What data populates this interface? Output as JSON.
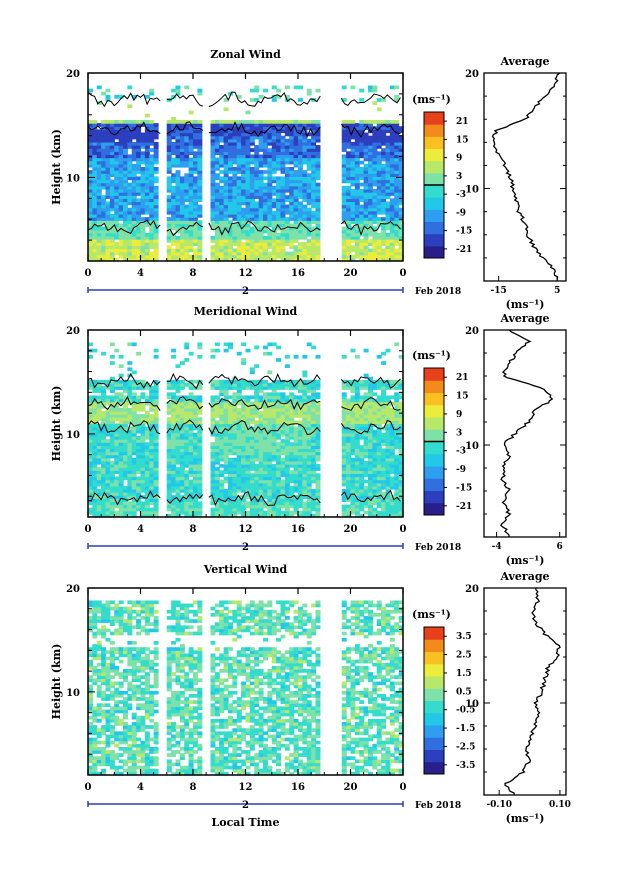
{
  "chart_data": [
    {
      "type": "heatmap",
      "title": "Zonal Wind",
      "ylabel": "Height (km)",
      "x_tick_labels": [
        "0",
        "4",
        "8",
        "12",
        "16",
        "20",
        "0"
      ],
      "xlim": [
        0,
        24
      ],
      "y_tick_labels": [
        "10",
        "20"
      ],
      "ylim": [
        2,
        20
      ],
      "date_label": "2",
      "date_suffix": "Feb 2018",
      "colorbar_unit": "(ms⁻¹)",
      "colorbar_ticks": [
        "21",
        "15",
        "9",
        "3",
        "-3",
        "-9",
        "-15",
        "-21"
      ],
      "colorbar_range": [
        -24,
        24
      ],
      "zero_contour": 0,
      "data_gaps_hours": [
        [
          5.5,
          6.0
        ],
        [
          8.8,
          9.2
        ],
        [
          17.8,
          19.3
        ]
      ],
      "profile": {
        "title": "Average",
        "xlabel": "(ms⁻¹)",
        "x_tick_labels": [
          "-15",
          "5"
        ],
        "xlim": [
          -20,
          8
        ],
        "heights_km": [
          2,
          3,
          4,
          5,
          6,
          7,
          8,
          9,
          10,
          11,
          12,
          13,
          14,
          15,
          16,
          17,
          18,
          19,
          20
        ],
        "values": [
          5,
          4,
          0,
          -3,
          -5,
          -6,
          -8,
          -9,
          -10,
          -11,
          -13,
          -15,
          -17,
          -16,
          -6,
          -3,
          1,
          4,
          6
        ]
      }
    },
    {
      "type": "heatmap",
      "title": "Meridional Wind",
      "ylabel": "Height (km)",
      "x_tick_labels": [
        "0",
        "4",
        "8",
        "12",
        "16",
        "20",
        "0"
      ],
      "xlim": [
        0,
        24
      ],
      "y_tick_labels": [
        "10",
        "20"
      ],
      "ylim": [
        2,
        20
      ],
      "date_label": "2",
      "date_suffix": "Feb 2018",
      "colorbar_unit": "(ms⁻¹)",
      "colorbar_ticks": [
        "21",
        "15",
        "9",
        "3",
        "-3",
        "-9",
        "-15",
        "-21"
      ],
      "colorbar_range": [
        -24,
        24
      ],
      "zero_contour": 0,
      "data_gaps_hours": [
        [
          5.5,
          6.0
        ],
        [
          8.8,
          9.2
        ],
        [
          17.8,
          19.3
        ]
      ],
      "profile": {
        "title": "Average",
        "xlabel": "(ms⁻¹)",
        "x_tick_labels": [
          "-4",
          "6"
        ],
        "xlim": [
          -6,
          7
        ],
        "heights_km": [
          2,
          3,
          4,
          5,
          6,
          7,
          8,
          9,
          10,
          11,
          12,
          13,
          14,
          15,
          16,
          17,
          18,
          19,
          20
        ],
        "values": [
          -2,
          -3,
          -2,
          -3,
          -2,
          -3,
          -3,
          -2,
          -3,
          -1,
          1,
          2,
          5,
          3,
          -3,
          -2,
          -1,
          1,
          -2
        ]
      }
    },
    {
      "type": "heatmap",
      "title": "Vertical Wind",
      "ylabel": "Height (km)",
      "xlabel": "Local Time",
      "x_tick_labels": [
        "0",
        "4",
        "8",
        "12",
        "16",
        "20",
        "0"
      ],
      "xlim": [
        0,
        24
      ],
      "y_tick_labels": [
        "10",
        "20"
      ],
      "ylim": [
        2,
        20
      ],
      "date_label": "2",
      "date_suffix": "Feb 2018",
      "colorbar_unit": "(ms⁻¹)",
      "colorbar_ticks": [
        "3.5",
        "2.5",
        "1.5",
        "0.5",
        "-0.5",
        "-1.5",
        "-2.5",
        "-3.5"
      ],
      "colorbar_range": [
        -4,
        4
      ],
      "data_gaps_hours": [
        [
          5.5,
          6.0
        ],
        [
          8.8,
          9.2
        ],
        [
          17.8,
          19.3
        ]
      ],
      "profile": {
        "title": "Average",
        "xlabel": "(ms⁻¹)",
        "x_tick_labels": [
          "-0.10",
          "0.10"
        ],
        "xlim": [
          -0.15,
          0.12
        ],
        "heights_km": [
          2,
          3,
          4,
          5,
          6,
          7,
          8,
          9,
          10,
          11,
          12,
          13,
          14,
          15,
          16,
          17,
          18,
          19,
          20
        ],
        "values": [
          -0.05,
          -0.08,
          -0.02,
          0.0,
          -0.01,
          0.0,
          0.02,
          0.03,
          0.02,
          0.04,
          0.05,
          0.06,
          0.09,
          0.1,
          0.05,
          0.02,
          0.01,
          0.03,
          0.02
        ]
      }
    }
  ]
}
